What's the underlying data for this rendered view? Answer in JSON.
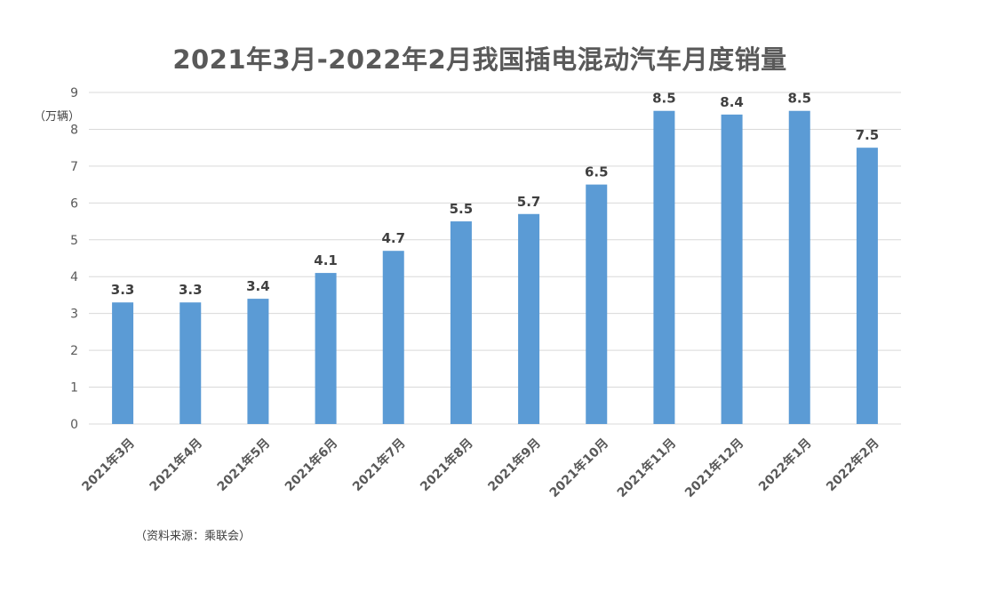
{
  "chart_data": {
    "type": "bar",
    "title": "2021年3月-2022年2月我国插电混动汽车月度销量",
    "unit_label": "（万辆）",
    "source": "（资料来源：乘联会）",
    "categories": [
      "2021年3月",
      "2021年4月",
      "2021年5月",
      "2021年6月",
      "2021年7月",
      "2021年8月",
      "2021年9月",
      "2021年10月",
      "2021年11月",
      "2021年12月",
      "2022年1月",
      "2022年2月"
    ],
    "values": [
      3.3,
      3.3,
      3.4,
      4.1,
      4.7,
      5.5,
      5.7,
      6.5,
      8.5,
      8.4,
      8.5,
      7.5
    ],
    "ylim": [
      0,
      9
    ],
    "yticks": [
      0,
      1,
      2,
      3,
      4,
      5,
      6,
      7,
      8,
      9
    ],
    "grid": true,
    "colors": {
      "bar": "#5b9bd5",
      "grid": "#d9d9d9",
      "text": "#595959"
    }
  }
}
